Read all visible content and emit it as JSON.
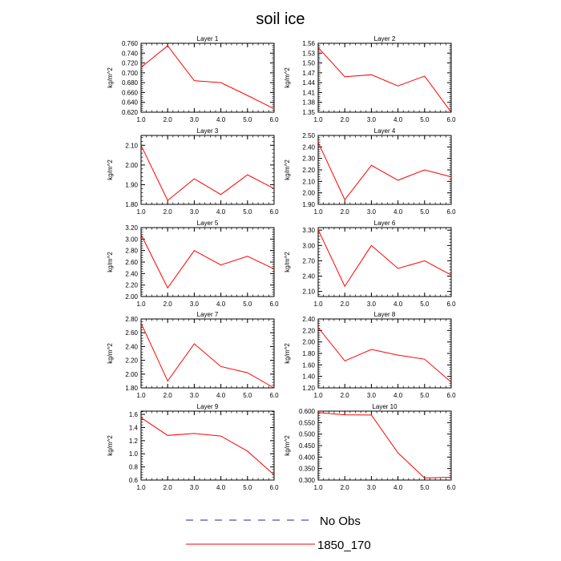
{
  "title": "soil ice",
  "colors": {
    "model": "#ff0000",
    "obs": "#2020a0",
    "axes": "#000000"
  },
  "legend": {
    "items": [
      "No Obs",
      "1850_170"
    ]
  },
  "chart_data": [
    {
      "type": "line",
      "title": "Layer 1",
      "ylabel": "kg/m^2",
      "x": [
        1,
        2,
        3,
        4,
        5,
        6
      ],
      "values": [
        0.711,
        0.755,
        0.684,
        0.68,
        0.654,
        0.627
      ],
      "xlim": [
        1,
        6
      ],
      "ylim": [
        0.62,
        0.76
      ],
      "xticks": [
        "1.0",
        "2.0",
        "3.0",
        "4.0",
        "5.0",
        "6.0"
      ],
      "yticks": [
        "0.620",
        "0.640",
        "0.660",
        "0.680",
        "0.700",
        "0.720",
        "0.740",
        "0.760"
      ],
      "series": [
        {
          "name": "1850_170",
          "values": [
            0.711,
            0.755,
            0.684,
            0.68,
            0.654,
            0.627
          ]
        }
      ]
    },
    {
      "type": "line",
      "title": "Layer 2",
      "ylabel": "kg/m^2",
      "x": [
        1,
        2,
        3,
        4,
        5,
        6
      ],
      "values": [
        1.547,
        1.458,
        1.464,
        1.43,
        1.46,
        1.35
      ],
      "xlim": [
        1,
        6
      ],
      "ylim": [
        1.35,
        1.56
      ],
      "xticks": [
        "1.0",
        "2.0",
        "3.0",
        "4.0",
        "5.0",
        "6.0"
      ],
      "yticks": [
        "1.35",
        "1.38",
        "1.41",
        "1.44",
        "1.47",
        "1.50",
        "1.53",
        "1.56"
      ],
      "series": [
        {
          "name": "1850_170",
          "values": [
            1.547,
            1.458,
            1.464,
            1.43,
            1.46,
            1.35
          ]
        }
      ]
    },
    {
      "type": "line",
      "title": "Layer 3",
      "ylabel": "kg/m^2",
      "x": [
        1,
        2,
        3,
        4,
        5,
        6
      ],
      "values": [
        2.1,
        1.82,
        1.93,
        1.85,
        1.95,
        1.88
      ],
      "xlim": [
        1,
        6
      ],
      "ylim": [
        1.8,
        2.15
      ],
      "xticks": [
        "1.0",
        "2.0",
        "3.0",
        "4.0",
        "5.0",
        "6.0"
      ],
      "yticks": [
        "1.80",
        "1.90",
        "2.00",
        "2.10"
      ],
      "series": [
        {
          "name": "1850_170",
          "values": [
            2.1,
            1.82,
            1.93,
            1.85,
            1.95,
            1.88
          ]
        }
      ]
    },
    {
      "type": "line",
      "title": "Layer 4",
      "ylabel": "kg/m^2",
      "x": [
        1,
        2,
        3,
        4,
        5,
        6
      ],
      "values": [
        2.44,
        1.94,
        2.24,
        2.11,
        2.2,
        2.14
      ],
      "xlim": [
        1,
        6
      ],
      "ylim": [
        1.9,
        2.5
      ],
      "xticks": [
        "1.0",
        "2.0",
        "3.0",
        "4.0",
        "5.0",
        "6.0"
      ],
      "yticks": [
        "1.90",
        "2.00",
        "2.10",
        "2.20",
        "2.30",
        "2.40",
        "2.50"
      ],
      "series": [
        {
          "name": "1850_170",
          "values": [
            2.44,
            1.94,
            2.24,
            2.11,
            2.2,
            2.14
          ]
        }
      ]
    },
    {
      "type": "line",
      "title": "Layer 5",
      "ylabel": "kg/m^2",
      "x": [
        1,
        2,
        3,
        4,
        5,
        6
      ],
      "values": [
        3.08,
        2.15,
        2.8,
        2.55,
        2.7,
        2.48
      ],
      "xlim": [
        1,
        6
      ],
      "ylim": [
        2.0,
        3.2
      ],
      "xticks": [
        "1.0",
        "2.0",
        "3.0",
        "4.0",
        "5.0",
        "6.0"
      ],
      "yticks": [
        "2.00",
        "2.20",
        "2.40",
        "2.60",
        "2.80",
        "3.00",
        "3.20"
      ],
      "series": [
        {
          "name": "1850_170",
          "values": [
            3.08,
            2.15,
            2.8,
            2.55,
            2.7,
            2.48
          ]
        }
      ]
    },
    {
      "type": "line",
      "title": "Layer 6",
      "ylabel": "kg/m^2",
      "x": [
        1,
        2,
        3,
        4,
        5,
        6
      ],
      "values": [
        3.31,
        2.2,
        3.0,
        2.55,
        2.7,
        2.42
      ],
      "xlim": [
        1,
        6
      ],
      "ylim": [
        2.0,
        3.35
      ],
      "xticks": [
        "1.0",
        "2.0",
        "3.0",
        "4.0",
        "5.0",
        "6.0"
      ],
      "yticks": [
        "2.10",
        "2.40",
        "2.70",
        "3.00",
        "3.30"
      ],
      "series": [
        {
          "name": "1850_170",
          "values": [
            3.31,
            2.2,
            3.0,
            2.55,
            2.7,
            2.42
          ]
        }
      ]
    },
    {
      "type": "line",
      "title": "Layer 7",
      "ylabel": "kg/m^2",
      "x": [
        1,
        2,
        3,
        4,
        5,
        6
      ],
      "values": [
        2.74,
        1.9,
        2.44,
        2.11,
        2.02,
        1.8
      ],
      "xlim": [
        1,
        6
      ],
      "ylim": [
        1.8,
        2.8
      ],
      "xticks": [
        "1.0",
        "2.0",
        "3.0",
        "4.0",
        "5.0",
        "6.0"
      ],
      "yticks": [
        "1.80",
        "2.00",
        "2.20",
        "2.40",
        "2.60",
        "2.80"
      ],
      "series": [
        {
          "name": "1850_170",
          "values": [
            2.74,
            1.9,
            2.44,
            2.11,
            2.02,
            1.8
          ]
        }
      ]
    },
    {
      "type": "line",
      "title": "Layer 8",
      "ylabel": "kg/m^2",
      "x": [
        1,
        2,
        3,
        4,
        5,
        6
      ],
      "values": [
        2.25,
        1.67,
        1.87,
        1.77,
        1.7,
        1.3
      ],
      "xlim": [
        1,
        6
      ],
      "ylim": [
        1.2,
        2.4
      ],
      "xticks": [
        "1.0",
        "2.0",
        "3.0",
        "4.0",
        "5.0",
        "6.0"
      ],
      "yticks": [
        "1.20",
        "1.40",
        "1.60",
        "1.80",
        "2.00",
        "2.20",
        "2.40"
      ],
      "series": [
        {
          "name": "1850_170",
          "values": [
            2.25,
            1.67,
            1.87,
            1.77,
            1.7,
            1.3
          ]
        }
      ]
    },
    {
      "type": "line",
      "title": "Layer 9",
      "ylabel": "kg/m^2",
      "x": [
        1,
        2,
        3,
        4,
        5,
        6
      ],
      "values": [
        1.55,
        1.28,
        1.31,
        1.27,
        1.04,
        0.68
      ],
      "xlim": [
        1,
        6
      ],
      "ylim": [
        0.6,
        1.65
      ],
      "xticks": [
        "1.0",
        "2.0",
        "3.0",
        "4.0",
        "5.0",
        "6.0"
      ],
      "yticks": [
        "0.6",
        "0.8",
        "1.0",
        "1.2",
        "1.4",
        "1.6"
      ],
      "series": [
        {
          "name": "1850_170",
          "values": [
            1.55,
            1.28,
            1.31,
            1.27,
            1.04,
            0.68
          ]
        }
      ]
    },
    {
      "type": "line",
      "title": "Layer 10",
      "ylabel": "kg/m^2",
      "x": [
        1,
        2,
        3,
        4,
        5,
        6
      ],
      "values": [
        0.594,
        0.584,
        0.583,
        0.418,
        0.309,
        0.312
      ],
      "xlim": [
        1,
        6
      ],
      "ylim": [
        0.3,
        0.6
      ],
      "xticks": [
        "1.0",
        "2.0",
        "3.0",
        "4.0",
        "5.0",
        "6.0"
      ],
      "yticks": [
        "0.300",
        "0.350",
        "0.400",
        "0.450",
        "0.500",
        "0.550",
        "0.600"
      ],
      "series": [
        {
          "name": "1850_170",
          "values": [
            0.594,
            0.584,
            0.583,
            0.418,
            0.309,
            0.312
          ]
        }
      ]
    }
  ]
}
